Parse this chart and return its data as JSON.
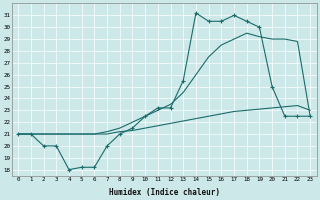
{
  "xlabel": "Humidex (Indice chaleur)",
  "bg_color": "#cce8e8",
  "line_color": "#1a6b6b",
  "xlim": [
    -0.5,
    23.5
  ],
  "ylim": [
    17.5,
    32.0
  ],
  "yticks": [
    18,
    19,
    20,
    21,
    22,
    23,
    24,
    25,
    26,
    27,
    28,
    29,
    30,
    31
  ],
  "xticks": [
    0,
    1,
    2,
    3,
    4,
    5,
    6,
    7,
    8,
    9,
    10,
    11,
    12,
    13,
    14,
    15,
    16,
    17,
    18,
    19,
    20,
    21,
    22,
    23
  ],
  "line1_x": [
    0,
    1,
    2,
    3,
    4,
    5,
    6,
    7,
    8,
    9,
    10,
    11,
    12,
    13,
    14,
    15,
    16,
    17,
    18,
    19,
    20,
    21,
    22,
    23
  ],
  "line1_y": [
    21.0,
    21.0,
    20.0,
    20.0,
    18.0,
    18.2,
    18.2,
    20.0,
    21.0,
    21.5,
    22.5,
    23.2,
    23.2,
    25.5,
    31.2,
    30.5,
    30.5,
    31.0,
    30.5,
    30.0,
    25.0,
    22.5,
    22.5,
    22.5
  ],
  "line2_x": [
    0,
    1,
    2,
    3,
    4,
    5,
    6,
    7,
    8,
    9,
    10,
    11,
    12,
    13,
    14,
    15,
    16,
    17,
    18,
    19,
    20,
    21,
    22,
    23
  ],
  "line2_y": [
    21.0,
    21.0,
    21.0,
    21.0,
    21.0,
    21.0,
    21.0,
    21.2,
    21.5,
    22.0,
    22.5,
    23.0,
    23.5,
    24.5,
    26.0,
    27.5,
    28.5,
    29.0,
    29.5,
    29.2,
    29.0,
    29.0,
    28.8,
    22.5
  ],
  "line3_x": [
    0,
    1,
    2,
    3,
    4,
    5,
    6,
    7,
    8,
    9,
    10,
    11,
    12,
    13,
    14,
    15,
    16,
    17,
    18,
    19,
    20,
    21,
    22,
    23
  ],
  "line3_y": [
    21.0,
    21.0,
    21.0,
    21.0,
    21.0,
    21.0,
    21.0,
    21.0,
    21.2,
    21.3,
    21.5,
    21.7,
    21.9,
    22.1,
    22.3,
    22.5,
    22.7,
    22.9,
    23.0,
    23.1,
    23.2,
    23.3,
    23.4,
    23.0
  ]
}
